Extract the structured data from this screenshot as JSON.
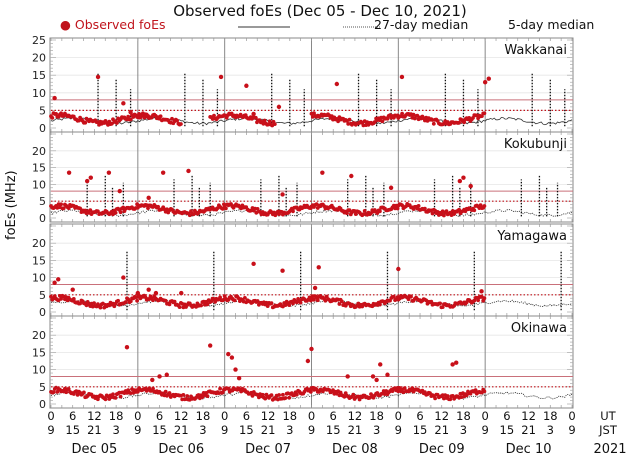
{
  "chart_data": {
    "type": "scatter",
    "title": "Observed foEs (Dec 05 - Dec 10, 2021)",
    "ylabel": "foEs (MHz)",
    "xlabel": "",
    "legend": {
      "placement": "top",
      "entries": [
        {
          "label": "Observed foEs",
          "marker": "dot",
          "color": "#c0141c"
        },
        {
          "label": "27-day median",
          "style": "solid-line",
          "color": "#333333"
        },
        {
          "label": "5-day median",
          "style": "dotted-line",
          "color": "#333333"
        }
      ]
    },
    "ylim": [
      0,
      25
    ],
    "y_ticks": [
      0,
      5,
      10,
      15,
      20,
      25
    ],
    "x_range_hours_ut": [
      0,
      144
    ],
    "x_ticks_ut": [
      "0",
      "6",
      "12",
      "18",
      "0",
      "6",
      "12",
      "18",
      "0",
      "6",
      "12",
      "18",
      "0",
      "6",
      "12",
      "18",
      "0",
      "6",
      "12",
      "18",
      "0",
      "6",
      "12",
      "18",
      "0"
    ],
    "x_ticks_jst": [
      "9",
      "15",
      "21",
      "3",
      "9",
      "15",
      "21",
      "3",
      "9",
      "15",
      "21",
      "3",
      "9",
      "15",
      "21",
      "3",
      "9",
      "15",
      "21",
      "3",
      "9",
      "15",
      "21",
      "3",
      "9"
    ],
    "x_tick_row_labels": [
      "UT",
      "JST"
    ],
    "day_labels": [
      "Dec 05",
      "Dec 06",
      "Dec 07",
      "Dec 08",
      "Dec 09",
      "Dec 10"
    ],
    "year_label": "2021",
    "reference_lines": {
      "solid_threshold": 8,
      "dotted_threshold": 5,
      "solid_color": "#c9707a",
      "dotted_color": "#c0141c"
    },
    "panels": [
      {
        "station": "Wakkanai",
        "y_tick_labels": [
          "0",
          "5",
          "10",
          "15",
          "20",
          "25"
        ],
        "observed_baseline": 2.5,
        "observed_spikes": [
          [
            1,
            8.5
          ],
          [
            13,
            14.5
          ],
          [
            20,
            7
          ],
          [
            22,
            4.5
          ],
          [
            47,
            14.5
          ],
          [
            54,
            12
          ],
          [
            56,
            4
          ],
          [
            63,
            6
          ],
          [
            79,
            12.5
          ],
          [
            97,
            14.5
          ],
          [
            120,
            13
          ],
          [
            121,
            14
          ]
        ],
        "observed_coverage": [
          [
            0,
            28
          ],
          [
            24,
            36
          ],
          [
            44,
            62
          ],
          [
            72,
            96
          ],
          [
            96,
            120
          ]
        ],
        "median_baseline": 2.0,
        "median_spikes": [
          [
            13,
            15.5
          ],
          [
            18,
            14
          ],
          [
            22,
            11
          ],
          [
            37,
            15.5
          ],
          [
            42,
            14
          ],
          [
            46,
            11
          ],
          [
            61,
            15.5
          ],
          [
            66,
            14
          ],
          [
            70,
            11
          ],
          [
            85,
            15.5
          ],
          [
            90,
            14
          ],
          [
            94,
            11
          ],
          [
            109,
            15.5
          ],
          [
            114,
            14
          ],
          [
            118,
            11
          ],
          [
            133,
            15.5
          ],
          [
            138,
            14
          ],
          [
            142,
            11
          ]
        ]
      },
      {
        "station": "Kokubunji",
        "y_tick_labels": [
          "0",
          "5",
          "10",
          "15",
          "20"
        ],
        "observed_baseline": 2.5,
        "observed_spikes": [
          [
            5,
            13.5
          ],
          [
            10,
            11
          ],
          [
            11,
            12
          ],
          [
            16,
            13.5
          ],
          [
            19,
            8
          ],
          [
            27,
            6
          ],
          [
            31,
            13.5
          ],
          [
            38,
            14
          ],
          [
            64,
            7
          ],
          [
            75,
            13.5
          ],
          [
            83,
            12.5
          ],
          [
            94,
            9
          ],
          [
            113,
            11
          ],
          [
            114,
            12
          ],
          [
            116,
            9.5
          ]
        ],
        "observed_coverage": [
          [
            0,
            24
          ],
          [
            24,
            48
          ],
          [
            48,
            72
          ],
          [
            72,
            96
          ],
          [
            96,
            120
          ]
        ],
        "median_baseline": 1.5,
        "median_spikes": [
          [
            10,
            11.5
          ],
          [
            15,
            13
          ],
          [
            17,
            9
          ],
          [
            20,
            10.5
          ],
          [
            34,
            11.5
          ],
          [
            39,
            13
          ],
          [
            41,
            9
          ],
          [
            44,
            10.5
          ],
          [
            58,
            11.5
          ],
          [
            63,
            13
          ],
          [
            65,
            9
          ],
          [
            68,
            10.5
          ],
          [
            82,
            11.5
          ],
          [
            87,
            13
          ],
          [
            89,
            9
          ],
          [
            92,
            10.5
          ],
          [
            106,
            11.5
          ],
          [
            111,
            13
          ],
          [
            113,
            9
          ],
          [
            116,
            10.5
          ],
          [
            130,
            11.5
          ],
          [
            135,
            13
          ],
          [
            137,
            9
          ],
          [
            140,
            10.5
          ]
        ]
      },
      {
        "station": "Yamagawa",
        "y_tick_labels": [
          "0",
          "5",
          "10",
          "15",
          "20"
        ],
        "observed_baseline": 3.0,
        "observed_spikes": [
          [
            1,
            8.5
          ],
          [
            2,
            9.5
          ],
          [
            6,
            6.5
          ],
          [
            20,
            10
          ],
          [
            24,
            5.5
          ],
          [
            27,
            6.5
          ],
          [
            29,
            5.5
          ],
          [
            36,
            5.5
          ],
          [
            56,
            14
          ],
          [
            64,
            12
          ],
          [
            73,
            7
          ],
          [
            74,
            13
          ],
          [
            96,
            12.5
          ],
          [
            119,
            6
          ]
        ],
        "observed_coverage": [
          [
            0,
            24
          ],
          [
            24,
            48
          ],
          [
            48,
            72
          ],
          [
            72,
            96
          ],
          [
            96,
            120
          ]
        ],
        "median_baseline": 2.5,
        "median_spikes": [
          [
            21,
            17.5
          ],
          [
            45,
            17.5
          ],
          [
            69,
            17.5
          ],
          [
            93,
            17.5
          ],
          [
            117,
            17.5
          ],
          [
            141,
            17.5
          ]
        ]
      },
      {
        "station": "Okinawa",
        "y_tick_labels": [
          "0",
          "5",
          "10",
          "15",
          "20"
        ],
        "observed_baseline": 3.0,
        "observed_spikes": [
          [
            21,
            16.5
          ],
          [
            28,
            7
          ],
          [
            30,
            8
          ],
          [
            32,
            8.5
          ],
          [
            44,
            17
          ],
          [
            49,
            14.5
          ],
          [
            50,
            13.5
          ],
          [
            51,
            10
          ],
          [
            52,
            7.5
          ],
          [
            71,
            12.5
          ],
          [
            72,
            16
          ],
          [
            82,
            8
          ],
          [
            89,
            8
          ],
          [
            90,
            7
          ],
          [
            91,
            11.5
          ],
          [
            93,
            8.5
          ],
          [
            111,
            11.5
          ],
          [
            112,
            12
          ]
        ],
        "observed_coverage": [
          [
            0,
            24
          ],
          [
            24,
            48
          ],
          [
            48,
            72
          ],
          [
            72,
            96
          ],
          [
            96,
            120
          ]
        ],
        "median_baseline": 2.5,
        "median_spikes": []
      }
    ]
  }
}
